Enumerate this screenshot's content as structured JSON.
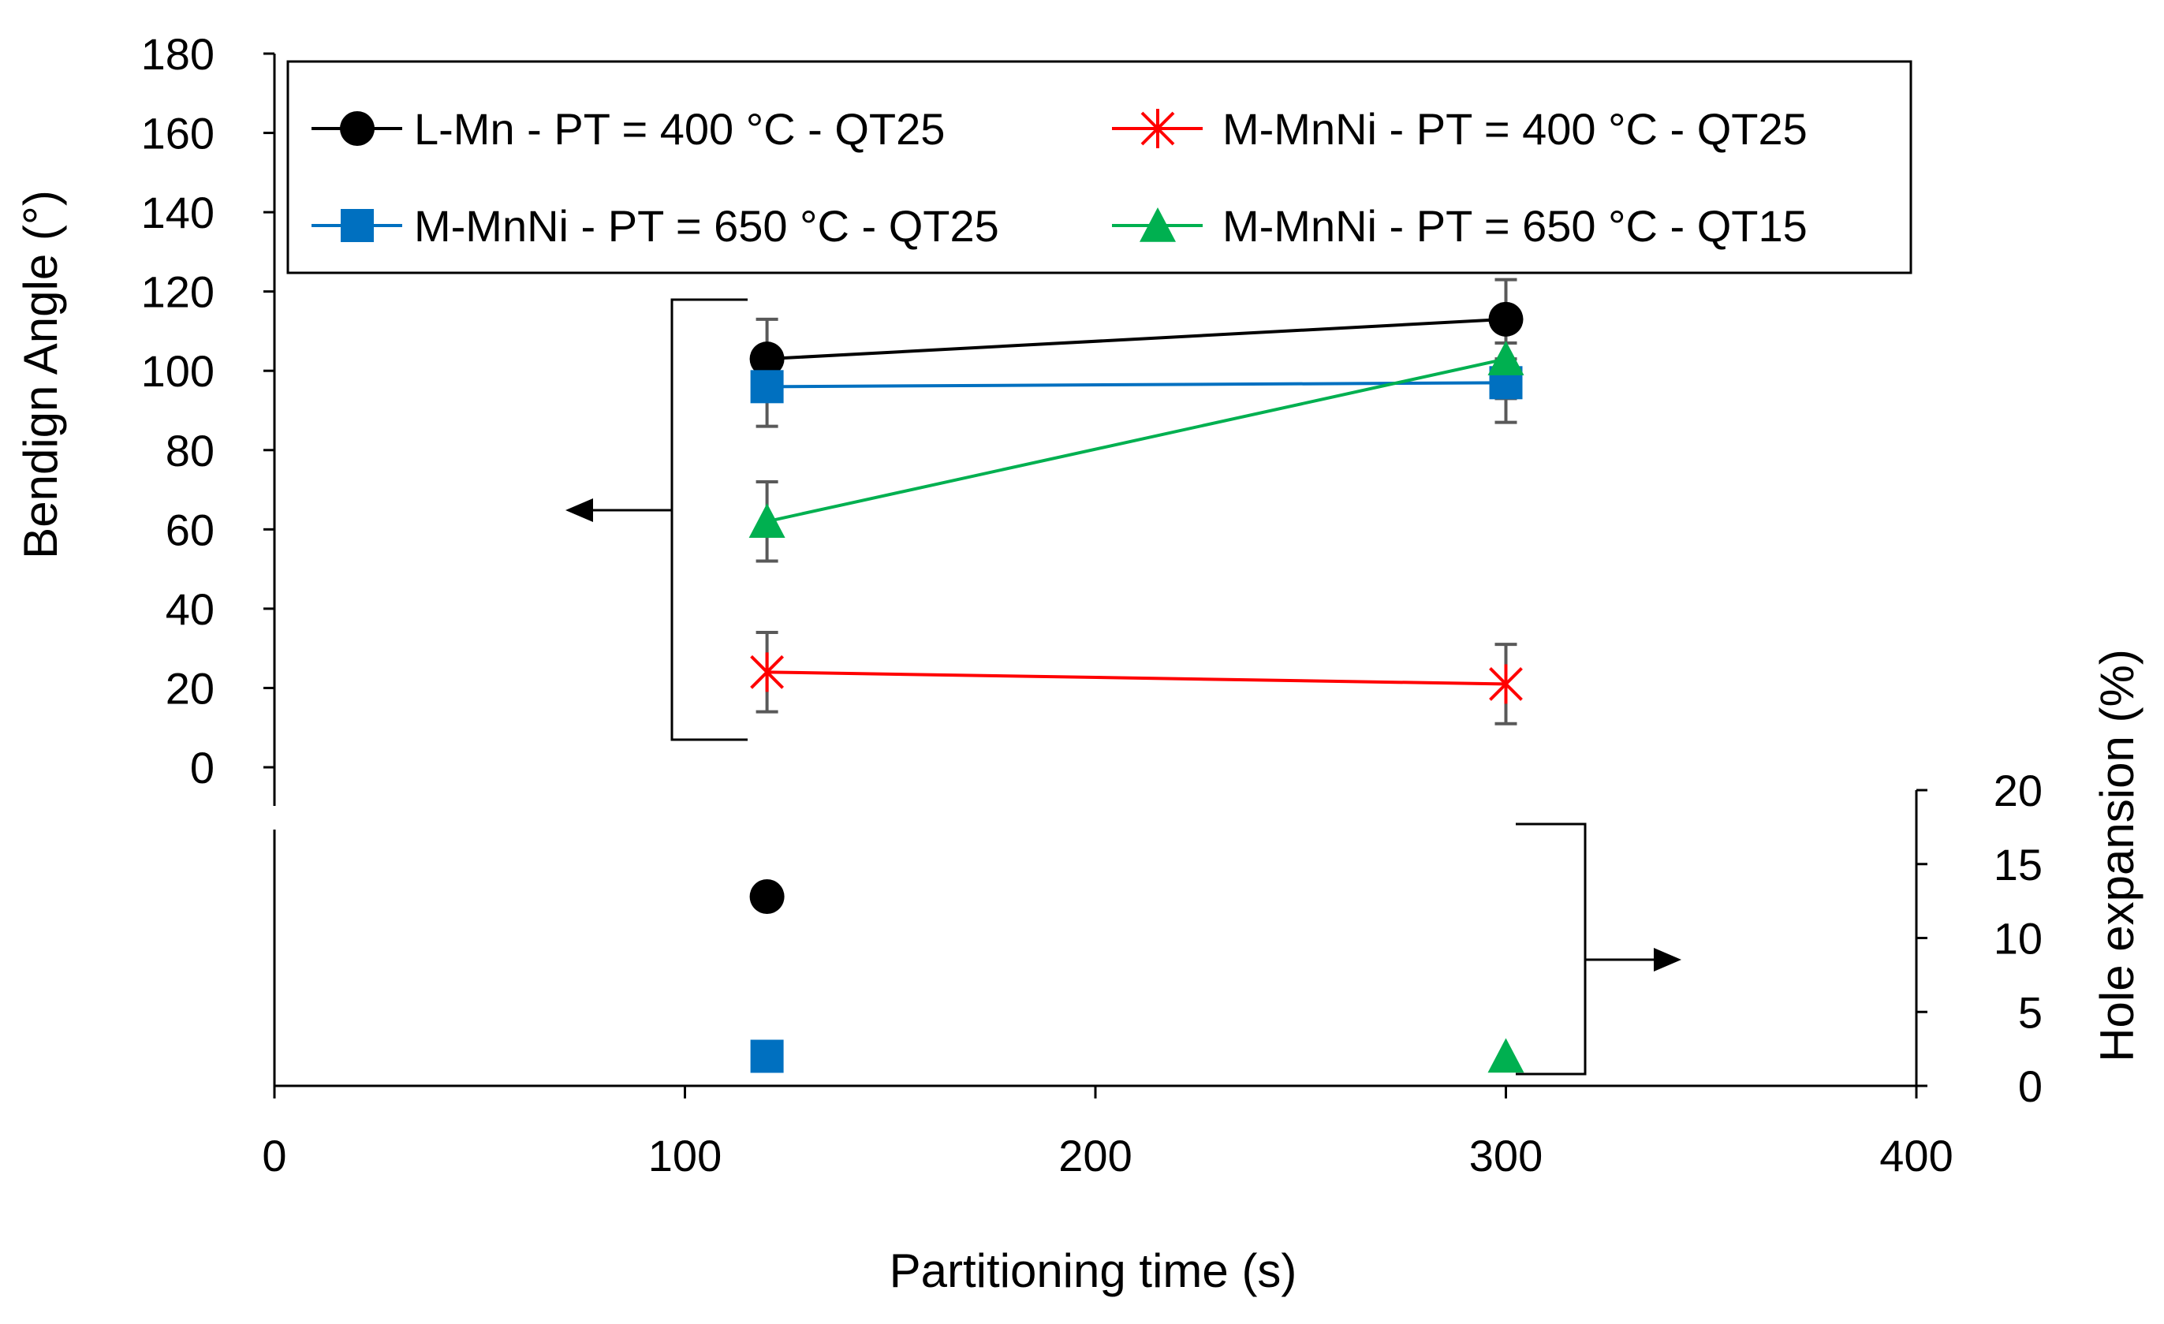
{
  "chart_data": {
    "type": "line",
    "x_axis": {
      "label": "Partitioning time (s)",
      "range": [
        0,
        400
      ],
      "ticks": [
        "0",
        "100",
        "200",
        "300",
        "400"
      ]
    },
    "y_axis_left": {
      "label": "Bendign Angle (°)",
      "range": [
        0,
        180
      ],
      "ticks": [
        "0",
        "20",
        "40",
        "60",
        "80",
        "100",
        "120",
        "140",
        "160",
        "180"
      ]
    },
    "y_axis_right": {
      "label": "Hole expansion (%)",
      "range": [
        0,
        20
      ],
      "ticks": [
        "0",
        "5",
        "10",
        "15",
        "20"
      ]
    },
    "series": [
      {
        "name": "L-Mn - PT = 400 °C - QT25",
        "color": "#000000",
        "marker": "circle",
        "bending": [
          {
            "x": 120,
            "y": 103,
            "err": 10
          },
          {
            "x": 300,
            "y": 113,
            "err": 10
          }
        ],
        "hole_expansion": [
          {
            "x": 120,
            "y": 12.8
          }
        ]
      },
      {
        "name": "M-MnNi - PT = 400 °C - QT25",
        "color": "#ff0000",
        "marker": "star",
        "bending": [
          {
            "x": 120,
            "y": 24,
            "err": 10
          },
          {
            "x": 300,
            "y": 21,
            "err": 10
          }
        ],
        "hole_expansion": []
      },
      {
        "name": "M-MnNi - PT = 650 °C - QT25",
        "color": "#0070c0",
        "marker": "square",
        "bending": [
          {
            "x": 120,
            "y": 96,
            "err": 10
          },
          {
            "x": 300,
            "y": 97,
            "err": 10
          }
        ],
        "hole_expansion": [
          {
            "x": 120,
            "y": 2
          }
        ]
      },
      {
        "name": "M-MnNi - PT = 650 °C - QT15",
        "color": "#00b050",
        "marker": "triangle",
        "bending": [
          {
            "x": 120,
            "y": 62,
            "err": 10
          },
          {
            "x": 300,
            "y": 103,
            "err": 10
          }
        ],
        "hole_expansion": [
          {
            "x": 300,
            "y": 2
          }
        ]
      }
    ],
    "legend_position": "top"
  }
}
